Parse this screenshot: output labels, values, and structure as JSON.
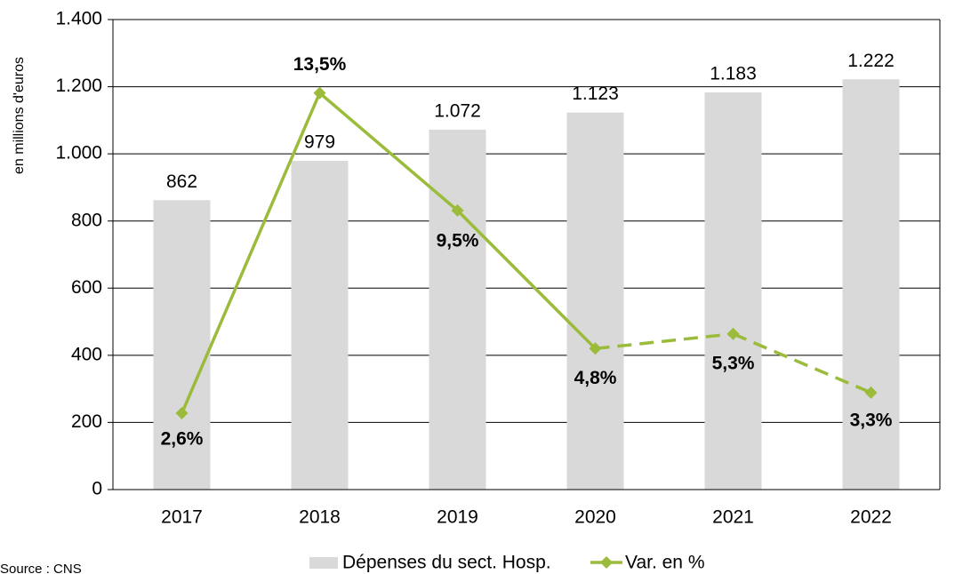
{
  "chart_data": {
    "type": "bar_line",
    "y_axis_label": "en millions d'euros",
    "source": "Source : CNS",
    "categories": [
      "2017",
      "2018",
      "2019",
      "2020",
      "2021",
      "2022"
    ],
    "series": [
      {
        "name": "Dépenses du sect. Hosp.",
        "type": "bar",
        "color": "#d9d9d9",
        "values": [
          862,
          979,
          1072,
          1123,
          1183,
          1222
        ],
        "value_labels": [
          "862",
          "979",
          "1.072",
          "1.123",
          "1.183",
          "1.222"
        ]
      },
      {
        "name": "Var. en %",
        "type": "line",
        "axis": "y2",
        "color": "#9bbb3b",
        "label_color": "#9c9b35",
        "values": [
          2.6,
          13.5,
          9.5,
          4.8,
          5.3,
          3.3
        ],
        "value_labels": [
          "2,6%",
          "13,5%",
          "9,5%",
          "4,8%",
          "5,3%",
          "3,3%"
        ],
        "segment_styles": [
          "solid",
          "solid",
          "solid",
          "dashed",
          "dashed"
        ]
      }
    ],
    "ylim": [
      0,
      1400
    ],
    "yticks": [
      0,
      200,
      400,
      600,
      800,
      {
        "value": 1000,
        "label": "1.000"
      },
      {
        "value": 1200,
        "label": "1.200"
      },
      {
        "value": 1400,
        "label": "1.400"
      }
    ],
    "y2lim": [
      0,
      16
    ],
    "grid": true
  }
}
